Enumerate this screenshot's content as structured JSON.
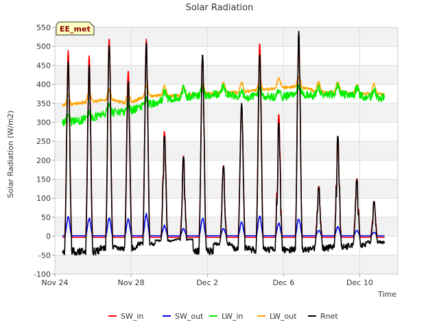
{
  "chart_data": {
    "type": "line",
    "title": "Solar Radiation",
    "xlabel": "Time",
    "ylabel": "Solar Radiation (W/m2)",
    "site_label": "EE_met",
    "x_unit": "days since Nov 24",
    "xlim": [
      0,
      18
    ],
    "ylim": [
      -100,
      550
    ],
    "yticks": [
      -100,
      -50,
      0,
      50,
      100,
      150,
      200,
      250,
      300,
      350,
      400,
      450,
      500,
      550
    ],
    "xticks": [
      {
        "value": 0,
        "label": "Nov 24"
      },
      {
        "value": 4,
        "label": "Nov 28"
      },
      {
        "value": 8,
        "label": "Dec 2"
      },
      {
        "value": 12,
        "label": "Dec 6"
      },
      {
        "value": 16,
        "label": "Dec 10"
      }
    ],
    "legend": [
      "SW_in",
      "SW_out",
      "LW_in",
      "LW_out",
      "Rnet"
    ],
    "colors": {
      "SW_in": "#ff0000",
      "SW_out": "#0000ee",
      "LW_in": "#00ee00",
      "LW_out": "#ffa500",
      "Rnet": "#000000",
      "band": "#f2f2f2",
      "grid": "#dddddd",
      "badge_fill": "#ffffc0"
    },
    "days": [
      {
        "t": 0.7,
        "sw_in_peak": 492,
        "sw_out_peak": 52,
        "rnet_peak": 460,
        "rnet_night": -50,
        "lw_in": 300,
        "lw_out": 345
      },
      {
        "t": 1.8,
        "sw_in_peak": 478,
        "sw_out_peak": 50,
        "rnet_peak": 450,
        "rnet_night": -50,
        "lw_in": 310,
        "lw_out": 355
      },
      {
        "t": 2.85,
        "sw_in_peak": 525,
        "sw_out_peak": 50,
        "rnet_peak": 505,
        "rnet_night": -40,
        "lw_in": 325,
        "lw_out": 360
      },
      {
        "t": 3.85,
        "sw_in_peak": 440,
        "sw_out_peak": 48,
        "rnet_peak": 410,
        "rnet_night": -40,
        "lw_in": 330,
        "lw_out": 350
      },
      {
        "t": 4.8,
        "sw_in_peak": 522,
        "sw_out_peak": 60,
        "rnet_peak": 510,
        "rnet_night": -25,
        "lw_in": 345,
        "lw_out": 370
      },
      {
        "t": 5.75,
        "sw_in_peak": 280,
        "sw_out_peak": 28,
        "rnet_peak": 265,
        "rnet_night": -15,
        "lw_in": 360,
        "lw_out": 370
      },
      {
        "t": 6.75,
        "sw_in_peak": 215,
        "sw_out_peak": 20,
        "rnet_peak": 210,
        "rnet_night": -10,
        "lw_in": 368,
        "lw_out": 370
      },
      {
        "t": 7.75,
        "sw_in_peak": 478,
        "sw_out_peak": 50,
        "rnet_peak": 480,
        "rnet_night": -50,
        "lw_in": 370,
        "lw_out": 375
      },
      {
        "t": 8.85,
        "sw_in_peak": 190,
        "sw_out_peak": 20,
        "rnet_peak": 185,
        "rnet_night": -25,
        "lw_in": 375,
        "lw_out": 378
      },
      {
        "t": 9.8,
        "sw_in_peak": 350,
        "sw_out_peak": 38,
        "rnet_peak": 350,
        "rnet_night": -40,
        "lw_in": 365,
        "lw_out": 380
      },
      {
        "t": 10.75,
        "sw_in_peak": 512,
        "sw_out_peak": 55,
        "rnet_peak": 480,
        "rnet_night": -45,
        "lw_in": 370,
        "lw_out": 385
      },
      {
        "t": 11.75,
        "sw_in_peak": 325,
        "sw_out_peak": 35,
        "rnet_peak": 300,
        "rnet_night": -45,
        "lw_in": 365,
        "lw_out": 390
      },
      {
        "t": 12.8,
        "sw_in_peak": 540,
        "sw_out_peak": 50,
        "rnet_peak": 540,
        "rnet_night": -45,
        "lw_in": 375,
        "lw_out": 395
      },
      {
        "t": 13.85,
        "sw_in_peak": 135,
        "sw_out_peak": 15,
        "rnet_peak": 130,
        "rnet_night": -40,
        "lw_in": 370,
        "lw_out": 380
      },
      {
        "t": 14.85,
        "sw_in_peak": 265,
        "sw_out_peak": 25,
        "rnet_peak": 265,
        "rnet_night": -35,
        "lw_in": 375,
        "lw_out": 380
      },
      {
        "t": 15.85,
        "sw_in_peak": 155,
        "sw_out_peak": 15,
        "rnet_peak": 150,
        "rnet_night": -30,
        "lw_in": 370,
        "lw_out": 375
      },
      {
        "t": 16.75,
        "sw_in_peak": 95,
        "sw_out_peak": 10,
        "rnet_peak": 92,
        "rnet_night": -20,
        "lw_in": 365,
        "lw_out": 375
      }
    ],
    "series_range": [
      0.4,
      17.3
    ]
  }
}
